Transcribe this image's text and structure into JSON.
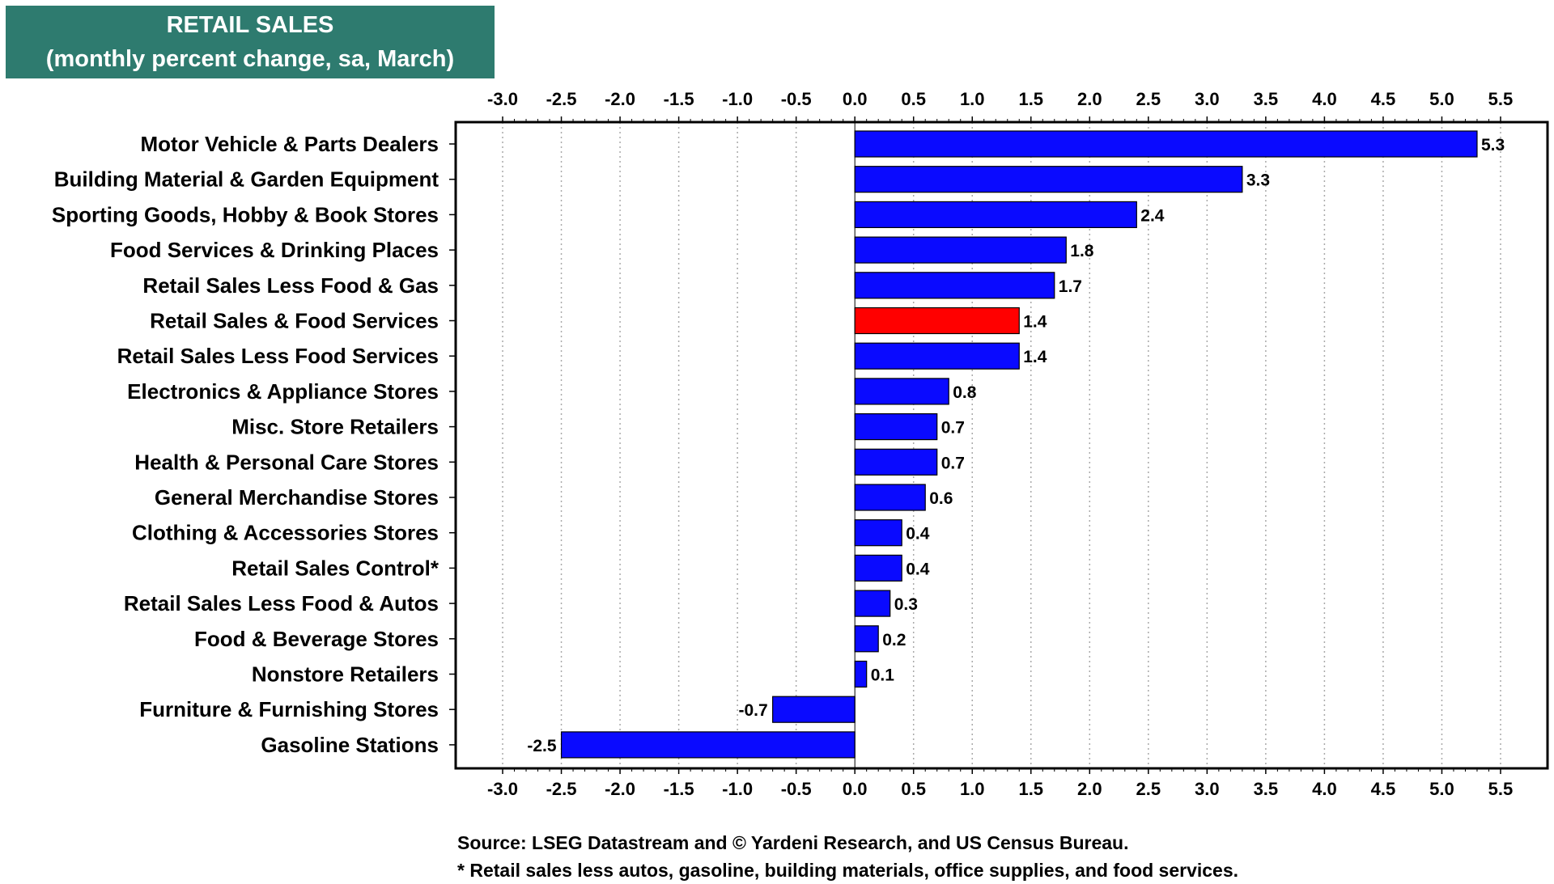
{
  "title": {
    "line1": "RETAIL SALES",
    "line2": "(monthly percent change, sa,  March)"
  },
  "colors": {
    "bar": "#0a0aff",
    "highlight": "#ff0000",
    "title_bg": "#2e7b6f"
  },
  "chart_data": {
    "type": "bar",
    "orientation": "horizontal",
    "categories": [
      "Motor Vehicle & Parts Dealers",
      "Building Material & Garden Equipment",
      "Sporting Goods, Hobby & Book Stores",
      "Food Services & Drinking Places",
      "Retail Sales Less Food & Gas",
      "Retail Sales & Food Services",
      "Retail Sales Less Food Services",
      "Electronics & Appliance Stores",
      "Misc. Store Retailers",
      "Health & Personal Care Stores",
      "General Merchandise Stores",
      "Clothing & Accessories Stores",
      "Retail Sales Control*",
      "Retail Sales Less Food & Autos",
      "Food & Beverage Stores",
      "Nonstore Retailers",
      "Furniture & Furnishing Stores",
      "Gasoline Stations"
    ],
    "values": [
      5.3,
      3.3,
      2.4,
      1.8,
      1.7,
      1.4,
      1.4,
      0.8,
      0.7,
      0.7,
      0.6,
      0.4,
      0.4,
      0.3,
      0.2,
      0.1,
      -0.7,
      -2.5
    ],
    "value_labels": [
      "5.3",
      "3.3",
      "2.4",
      "1.8",
      "1.7",
      "1.4",
      "1.4",
      "0.8",
      "0.7",
      "0.7",
      "0.6",
      "0.4",
      "0.4",
      "0.3",
      "0.2",
      "0.1",
      "-0.7",
      "-2.5"
    ],
    "highlight_category": "Retail Sales & Food Services",
    "xlim": [
      -3.4,
      5.9
    ],
    "ticks": [
      -3.0,
      -2.5,
      -2.0,
      -1.5,
      -1.0,
      -0.5,
      0.0,
      0.5,
      1.0,
      1.5,
      2.0,
      2.5,
      3.0,
      3.5,
      4.0,
      4.5,
      5.0,
      5.5
    ],
    "tick_labels": [
      "-3.0",
      "-2.5",
      "-2.0",
      "-1.5",
      "-1.0",
      "-0.5",
      "0.0",
      "0.5",
      "1.0",
      "1.5",
      "2.0",
      "2.5",
      "3.0",
      "3.5",
      "4.0",
      "4.5",
      "5.0",
      "5.5"
    ],
    "grid": true,
    "xlabel": "",
    "ylabel": ""
  },
  "notes": {
    "source": "Source: LSEG Datastream and © Yardeni Research, and US Census Bureau.",
    "footnote": "* Retail sales less autos, gasoline, building materials, office supplies, and food services."
  }
}
